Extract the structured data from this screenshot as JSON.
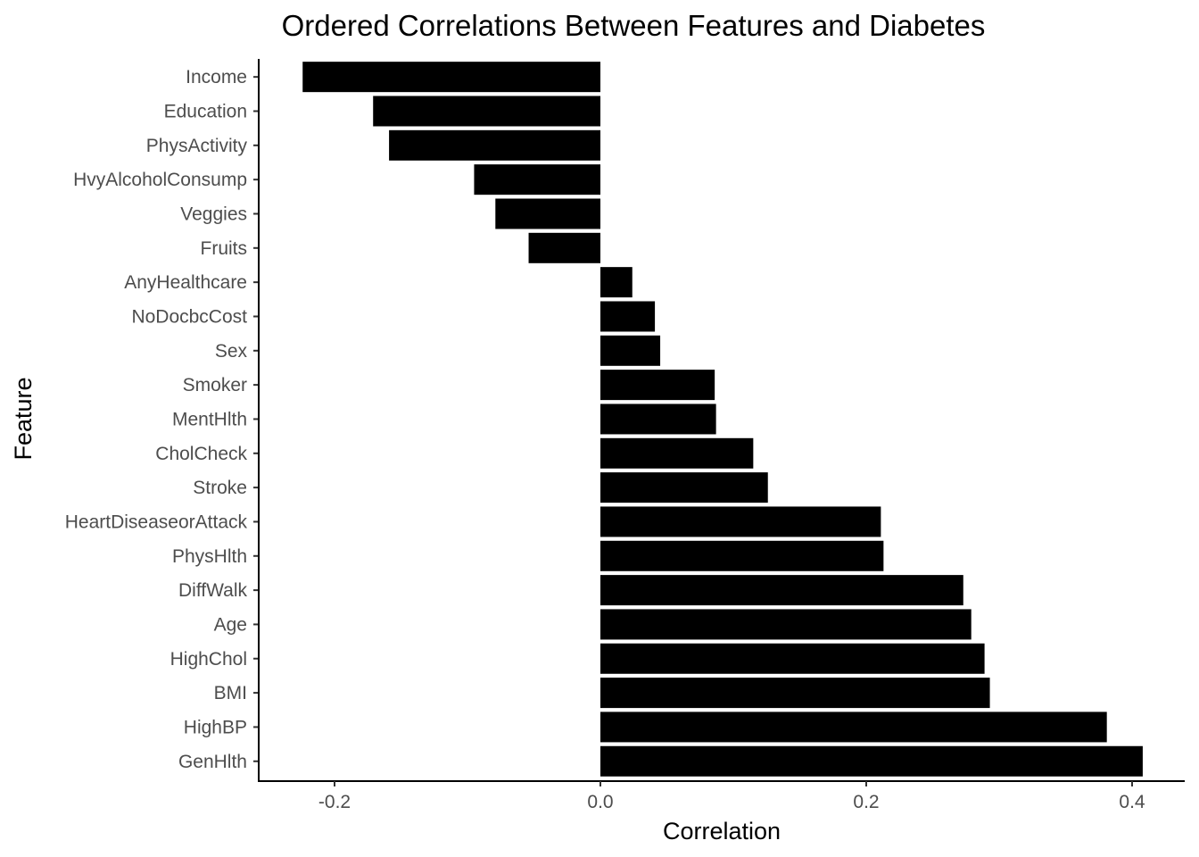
{
  "chart_data": {
    "type": "bar",
    "orientation": "horizontal",
    "title": "Ordered Correlations Between Features and Diabetes",
    "xlabel": "Correlation",
    "ylabel": "Feature",
    "xlim": [
      -0.25,
      0.42
    ],
    "x_ticks": [
      -0.2,
      0.0,
      0.2,
      0.4
    ],
    "x_tick_labels": [
      "-0.2",
      "0.0",
      "0.2",
      "0.4"
    ],
    "grid": false,
    "bar_color": "#000000",
    "categories": [
      "Income",
      "Education",
      "PhysActivity",
      "HvyAlcoholConsump",
      "Veggies",
      "Fruits",
      "AnyHealthcare",
      "NoDocbcCost",
      "Sex",
      "Smoker",
      "MentHlth",
      "CholCheck",
      "Stroke",
      "HeartDiseaseorAttack",
      "PhysHlth",
      "DiffWalk",
      "Age",
      "HighChol",
      "BMI",
      "HighBP",
      "GenHlth"
    ],
    "values": [
      -0.224,
      -0.171,
      -0.159,
      -0.095,
      -0.079,
      -0.054,
      0.024,
      0.041,
      0.045,
      0.086,
      0.087,
      0.115,
      0.126,
      0.211,
      0.213,
      0.273,
      0.279,
      0.289,
      0.293,
      0.381,
      0.408
    ]
  }
}
